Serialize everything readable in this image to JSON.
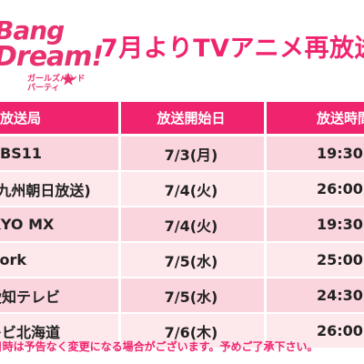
{
  "logo": {
    "line1": "Bang",
    "line2": "Dream!",
    "subtitle": "ガールズバンドパーティ"
  },
  "title": "7月よりTVアニメ再放送",
  "table": {
    "headers": {
      "station": "放送局",
      "date": "放送開始日",
      "time": "放送時間"
    },
    "rows": [
      {
        "station": "BS11",
        "date": "7/3(月)",
        "time": "19:30"
      },
      {
        "station": "KBC九州朝日放送)",
        "date": "7/4(火)",
        "time": "26:00"
      },
      {
        "station": "TOKYO MX",
        "date": "7/4(火)",
        "time": "19:30"
      },
      {
        "station": "sun network",
        "date": "7/5(水)",
        "time": "25:00"
      },
      {
        "station": "テレビ愛知テレビ",
        "date": "7/5(水)",
        "time": "24:30"
      },
      {
        "station": "テレビ北海道",
        "date": "7/6(木)",
        "time": "26:00"
      }
    ]
  },
  "footnote": "※放送日時は予告なく変更になる場合がございます。予めご了承下さい。"
}
